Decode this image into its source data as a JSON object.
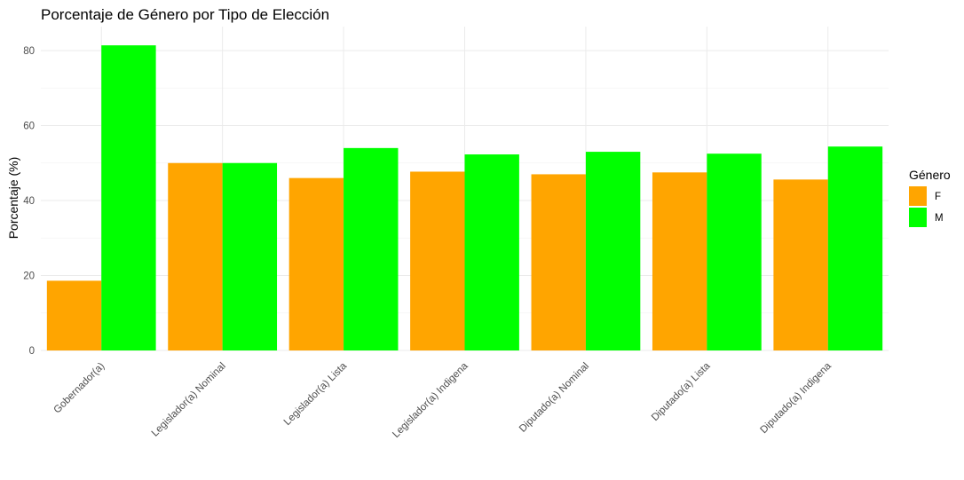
{
  "chart_data": {
    "type": "bar",
    "title": "Porcentaje de Género por Tipo de Elección",
    "xlabel": "",
    "ylabel": "Porcentaje (%)",
    "ylim": [
      0,
      85
    ],
    "yticks": [
      0,
      20,
      40,
      60,
      80
    ],
    "grid": true,
    "categories": [
      "Gobernador(a)",
      "Legislador(a) Nominal",
      "Legislador(a) Lista",
      "Legislador(a) Indigena",
      "Diputado(a) Nominal",
      "Diputado(a) Lista",
      "Diputado(a) Indigena"
    ],
    "series": [
      {
        "name": "F",
        "color": "#FFA500",
        "values": [
          18.6,
          50.0,
          46.0,
          47.7,
          47.0,
          47.5,
          45.6
        ]
      },
      {
        "name": "M",
        "color": "#00FF00",
        "values": [
          81.4,
          50.0,
          54.0,
          52.3,
          53.0,
          52.5,
          54.4
        ]
      }
    ],
    "legend": {
      "title": "Género",
      "position": "right"
    }
  }
}
